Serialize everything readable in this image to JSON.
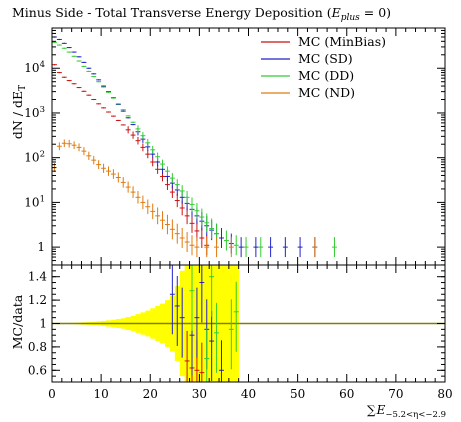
{
  "chart_data": {
    "type": "scatter",
    "title": "Minus Side - Total Transverse Energy Deposition (",
    "title_math": {
      "var": "E",
      "sub": "plus",
      "rest": " = 0)"
    },
    "ylabel_main": "dN / dE",
    "ylabel_main_sub": "T",
    "ylabel_ratio": "MC/data",
    "xlabel": {
      "sym": "∑",
      "var": "E",
      "sub": "−5.2<η<−2.9"
    },
    "xlim": [
      0,
      80
    ],
    "main_ylim_log10": [
      -0.4,
      4.9
    ],
    "ratio_ylim": [
      0.5,
      1.5
    ],
    "x_ticks": [
      {
        "v": 0,
        "label": "0"
      },
      {
        "v": 10,
        "label": "10"
      },
      {
        "v": 20,
        "label": "20"
      },
      {
        "v": 30,
        "label": "30"
      },
      {
        "v": 40,
        "label": "40"
      },
      {
        "v": 50,
        "label": "50"
      },
      {
        "v": 60,
        "label": "60"
      },
      {
        "v": 70,
        "label": "70"
      },
      {
        "v": 80,
        "label": "80"
      }
    ],
    "main_y_ticks": [
      {
        "e": 0,
        "label": "1"
      },
      {
        "e": 1,
        "label": "10"
      },
      {
        "e": 2,
        "label": "10"
      },
      {
        "e": 3,
        "label": "10"
      },
      {
        "e": 4,
        "label": "10"
      }
    ],
    "main_y_tick_exps": [
      "",
      "1",
      "2",
      "3",
      "4"
    ],
    "ratio_y_ticks": [
      {
        "v": 0.6,
        "label": "0.6"
      },
      {
        "v": 0.8,
        "label": "0.8"
      },
      {
        "v": 1.0,
        "label": "1"
      },
      {
        "v": 1.2,
        "label": "1.2"
      },
      {
        "v": 1.4,
        "label": "1.4"
      }
    ],
    "legend": {
      "placement": "top-right"
    },
    "series": [
      {
        "name": "MC (MinBias)",
        "color": "#cc1111",
        "main": [
          [
            0.5,
            12000
          ],
          [
            1.5,
            8000
          ],
          [
            2.5,
            6300
          ],
          [
            3.5,
            5300
          ],
          [
            4.5,
            4500
          ],
          [
            5.5,
            3700
          ],
          [
            6.5,
            3050
          ],
          [
            7.5,
            2500
          ],
          [
            8.5,
            2000
          ],
          [
            9.5,
            1600
          ],
          [
            10.5,
            1300
          ],
          [
            11.5,
            1050
          ],
          [
            12.5,
            850
          ],
          [
            13.5,
            680
          ],
          [
            14.5,
            540
          ],
          [
            15.5,
            420
          ],
          [
            16.5,
            320
          ],
          [
            17.5,
            240
          ],
          [
            18.5,
            170
          ],
          [
            19.5,
            120
          ],
          [
            20.5,
            80
          ],
          [
            21.5,
            55
          ],
          [
            22.5,
            38
          ],
          [
            23.5,
            25
          ],
          [
            24.5,
            17
          ],
          [
            25.5,
            11
          ],
          [
            26.5,
            7.5
          ],
          [
            27.5,
            5
          ],
          [
            28.5,
            3.4
          ],
          [
            29.5,
            2.3
          ],
          [
            30.5,
            1.6
          ],
          [
            31.5,
            1.1
          ]
        ],
        "ratio": [
          [
            27.5,
            0.68
          ],
          [
            28.5,
            0.62
          ],
          [
            29.5,
            0.6
          ],
          [
            30.5,
            0.58
          ]
        ]
      },
      {
        "name": "MC (SD)",
        "color": "#2222cc",
        "main": [
          [
            0.5,
            50000
          ],
          [
            1.5,
            44000
          ],
          [
            2.5,
            36000
          ],
          [
            3.5,
            29000
          ],
          [
            4.5,
            23000
          ],
          [
            5.5,
            18000
          ],
          [
            6.5,
            13500
          ],
          [
            7.5,
            10000
          ],
          [
            8.5,
            7500
          ],
          [
            9.5,
            5500
          ],
          [
            10.5,
            4000
          ],
          [
            11.5,
            3000
          ],
          [
            12.5,
            2200
          ],
          [
            13.5,
            1550
          ],
          [
            14.5,
            1100
          ],
          [
            15.5,
            780
          ],
          [
            16.5,
            550
          ],
          [
            17.5,
            380
          ],
          [
            18.5,
            260
          ],
          [
            19.5,
            175
          ],
          [
            20.5,
            120
          ],
          [
            21.5,
            80
          ],
          [
            22.5,
            55
          ],
          [
            23.5,
            38
          ],
          [
            24.5,
            27
          ],
          [
            25.5,
            19
          ],
          [
            26.5,
            13
          ],
          [
            27.5,
            9.5
          ],
          [
            28.5,
            7
          ],
          [
            29.5,
            5
          ],
          [
            30.5,
            3.8
          ],
          [
            31.5,
            3
          ],
          [
            32.5,
            2.4
          ],
          [
            33.5,
            2
          ],
          [
            34.5,
            1.6
          ],
          [
            36.5,
            1.2
          ],
          [
            38.5,
            1.0
          ],
          [
            41.5,
            1.0
          ],
          [
            44.5,
            1.0
          ],
          [
            47.5,
            1.0
          ],
          [
            50.5,
            1.0
          ],
          [
            53.5,
            1.0
          ]
        ],
        "ratio": [
          [
            24.5,
            1.25
          ],
          [
            25.5,
            1.15
          ],
          [
            26.5,
            1.05
          ],
          [
            28.5,
            0.9
          ],
          [
            29.5,
            1.05
          ],
          [
            30.5,
            1.35
          ],
          [
            31.5,
            0.95
          ],
          [
            32.5,
            0.85
          ],
          [
            34.5,
            0.6
          ]
        ]
      },
      {
        "name": "MC (DD)",
        "color": "#33cc33",
        "main": [
          [
            0.5,
            38000
          ],
          [
            1.5,
            33000
          ],
          [
            2.5,
            28000
          ],
          [
            3.5,
            23000
          ],
          [
            4.5,
            18500
          ],
          [
            5.5,
            14500
          ],
          [
            6.5,
            11000
          ],
          [
            7.5,
            8500
          ],
          [
            8.5,
            6500
          ],
          [
            9.5,
            5000
          ],
          [
            10.5,
            3800
          ],
          [
            11.5,
            2900
          ],
          [
            12.5,
            2150
          ],
          [
            13.5,
            1600
          ],
          [
            14.5,
            1180
          ],
          [
            15.5,
            860
          ],
          [
            16.5,
            620
          ],
          [
            17.5,
            440
          ],
          [
            18.5,
            310
          ],
          [
            19.5,
            215
          ],
          [
            20.5,
            150
          ],
          [
            21.5,
            105
          ],
          [
            22.5,
            72
          ],
          [
            23.5,
            50
          ],
          [
            24.5,
            35
          ],
          [
            25.5,
            25
          ],
          [
            26.5,
            18
          ],
          [
            27.5,
            13
          ],
          [
            28.5,
            9
          ],
          [
            29.5,
            6.5
          ],
          [
            30.5,
            4.7
          ],
          [
            31.5,
            3.5
          ],
          [
            32.5,
            2.6
          ],
          [
            33.5,
            2
          ],
          [
            35.5,
            1.4
          ],
          [
            37.5,
            1.1
          ],
          [
            39.5,
            1.0
          ],
          [
            42.5,
            1.0
          ],
          [
            57.5,
            1.0
          ]
        ],
        "ratio": [
          [
            28.5,
            1.28
          ],
          [
            31.5,
            0.7
          ],
          [
            32.5,
            1.4
          ],
          [
            33.5,
            0.92
          ],
          [
            36.5,
            0.95
          ],
          [
            37.5,
            1.1
          ]
        ]
      },
      {
        "name": "MC (ND)",
        "color": "#e07a10",
        "main": [
          [
            0.5,
            60
          ],
          [
            1.5,
            180
          ],
          [
            2.5,
            210
          ],
          [
            3.5,
            205
          ],
          [
            4.5,
            190
          ],
          [
            5.5,
            170
          ],
          [
            6.5,
            140
          ],
          [
            7.5,
            110
          ],
          [
            8.5,
            88
          ],
          [
            9.5,
            70
          ],
          [
            10.5,
            58
          ],
          [
            11.5,
            50
          ],
          [
            12.5,
            43
          ],
          [
            13.5,
            36
          ],
          [
            14.5,
            28
          ],
          [
            15.5,
            22
          ],
          [
            16.5,
            17
          ],
          [
            17.5,
            13
          ],
          [
            18.5,
            10
          ],
          [
            19.5,
            8
          ],
          [
            20.5,
            6.3
          ],
          [
            21.5,
            5
          ],
          [
            22.5,
            4
          ],
          [
            23.5,
            3.2
          ],
          [
            24.5,
            2.5
          ],
          [
            25.5,
            2
          ],
          [
            26.5,
            1.6
          ],
          [
            27.5,
            1.3
          ],
          [
            28.5,
            1.1
          ],
          [
            29.5,
            1.0
          ],
          [
            31.5,
            1.0
          ],
          [
            33.5,
            1.0
          ],
          [
            36.5,
            1.0
          ],
          [
            53.5,
            1.0
          ]
        ],
        "ratio": []
      }
    ],
    "mc_uncertainty_band": {
      "color": "#ffff00",
      "bins": [
        [
          0,
          0.002
        ],
        [
          1,
          0.003
        ],
        [
          2,
          0.004
        ],
        [
          3,
          0.005
        ],
        [
          4,
          0.006
        ],
        [
          5,
          0.008
        ],
        [
          6,
          0.01
        ],
        [
          7,
          0.012
        ],
        [
          8,
          0.015
        ],
        [
          9,
          0.018
        ],
        [
          10,
          0.022
        ],
        [
          11,
          0.027
        ],
        [
          12,
          0.032
        ],
        [
          13,
          0.038
        ],
        [
          14,
          0.045
        ],
        [
          15,
          0.055
        ],
        [
          16,
          0.065
        ],
        [
          17,
          0.08
        ],
        [
          18,
          0.095
        ],
        [
          19,
          0.11
        ],
        [
          20,
          0.13
        ],
        [
          21,
          0.15
        ],
        [
          22,
          0.17
        ],
        [
          23,
          0.2
        ],
        [
          24,
          0.24
        ],
        [
          25,
          0.32
        ],
        [
          26,
          0.45
        ],
        [
          27,
          0.6
        ],
        [
          28,
          0.75
        ],
        [
          29,
          0.6
        ],
        [
          30,
          0.8
        ],
        [
          31,
          0.7
        ],
        [
          32,
          0.9
        ],
        [
          33,
          0.6
        ],
        [
          34,
          0.9
        ],
        [
          35,
          0.5
        ],
        [
          36,
          0.9
        ],
        [
          37,
          0.9
        ]
      ]
    },
    "ratio_reference": {
      "value": 1.0,
      "color": "#808000"
    }
  }
}
